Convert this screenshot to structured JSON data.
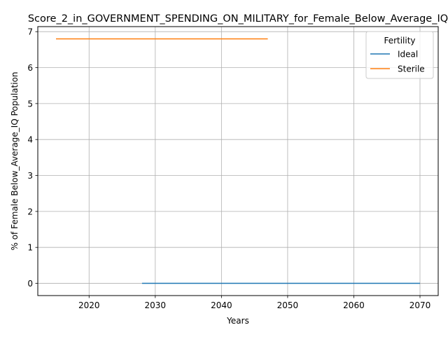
{
  "chart_data": {
    "type": "line",
    "title": "Score_2_in_GOVERNMENT_SPENDING_ON_MILITARY_for_Female_Below_Average_IQ",
    "xlabel": "Years",
    "ylabel": "% of Female Below_Average_IQ Population",
    "xlim": [
      2012.25,
      2072.75
    ],
    "ylim": [
      -0.34,
      7.14
    ],
    "xticks": [
      2020,
      2030,
      2040,
      2050,
      2060,
      2070
    ],
    "yticks": [
      0,
      1,
      2,
      3,
      4,
      5,
      6,
      7
    ],
    "grid": true,
    "legend": {
      "title": "Fertility",
      "placement": "top-right"
    },
    "series": [
      {
        "name": "Ideal",
        "color": "#1f77b4",
        "x": [
          2028,
          2070
        ],
        "y": [
          0.0,
          0.0
        ]
      },
      {
        "name": "Sterile",
        "color": "#ff7f0e",
        "x": [
          2015,
          2047
        ],
        "y": [
          6.8,
          6.8
        ]
      }
    ]
  }
}
